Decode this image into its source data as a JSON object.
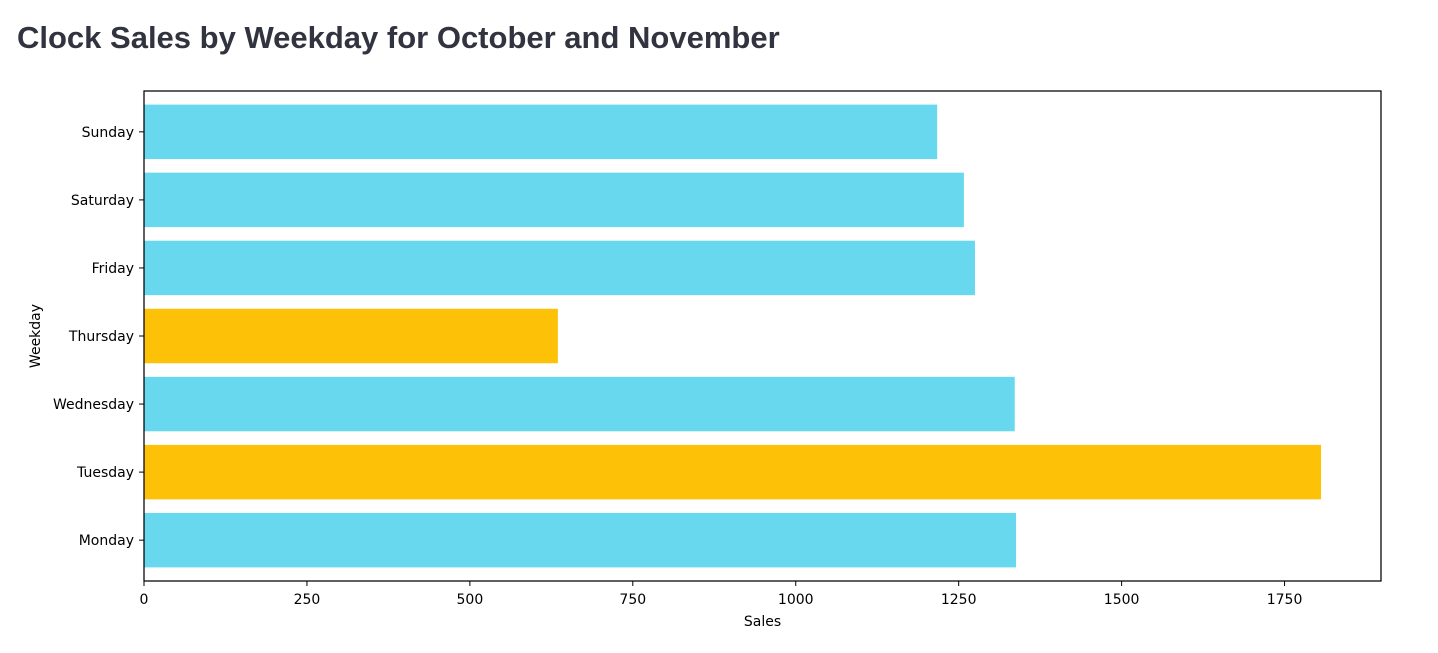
{
  "page": {
    "title": "Clock Sales by Weekday for October and November"
  },
  "chart_data": {
    "type": "bar",
    "orientation": "horizontal",
    "title": "",
    "xlabel": "Sales",
    "ylabel": "Weekday",
    "categories": [
      "Monday",
      "Tuesday",
      "Wednesday",
      "Thursday",
      "Friday",
      "Saturday",
      "Sunday"
    ],
    "values": [
      1338,
      1806,
      1336,
      635,
      1275,
      1258,
      1217
    ],
    "bar_colors": [
      "#67d8ed",
      "#fdc107",
      "#67d8ed",
      "#fdc107",
      "#67d8ed",
      "#67d8ed",
      "#67d8ed"
    ],
    "xlim": [
      0,
      1898
    ],
    "xticks": [
      0,
      250,
      500,
      750,
      1000,
      1250,
      1500,
      1750
    ],
    "grid": false,
    "legend": "none"
  }
}
